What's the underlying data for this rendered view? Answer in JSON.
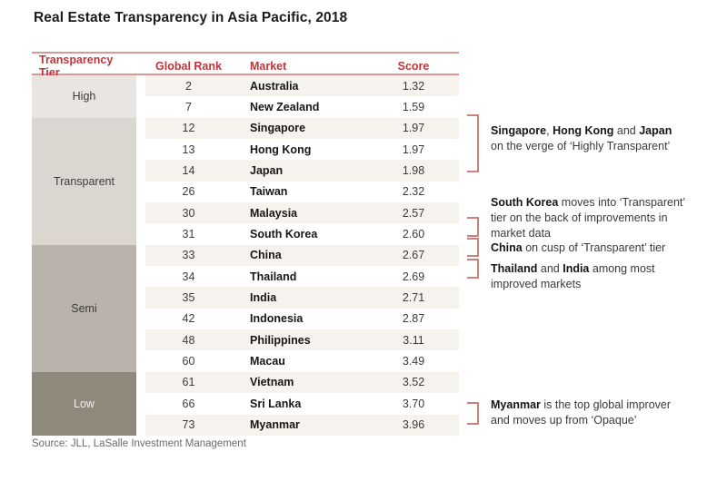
{
  "title": "Real Estate Transparency in Asia Pacific, 2018",
  "source": "Source: JLL, LaSalle Investment Management",
  "colors": {
    "header_text": "#c1343a",
    "rule": "#d59a95",
    "bracket": "#c9837d",
    "row_stripe": "#f6f2ed",
    "tier_high": "#e9e5e0",
    "tier_transparent": "#dbd6cf",
    "tier_semi": "#b9b3ab",
    "tier_low": "#8e897b"
  },
  "chart_data": {
    "type": "table",
    "title": "Real Estate Transparency in Asia Pacific, 2018",
    "columns": [
      "Transparency Tier",
      "Global Rank",
      "Market",
      "Score"
    ],
    "tiers": [
      {
        "label": "High",
        "row_span": 2
      },
      {
        "label": "Transparent",
        "row_span": 6
      },
      {
        "label": "Semi",
        "row_span": 6
      },
      {
        "label": "Low",
        "row_span": 3
      }
    ],
    "rows": [
      {
        "rank": "2",
        "market": "Australia",
        "score": "1.32"
      },
      {
        "rank": "7",
        "market": "New Zealand",
        "score": "1.59"
      },
      {
        "rank": "12",
        "market": "Singapore",
        "score": "1.97"
      },
      {
        "rank": "13",
        "market": "Hong Kong",
        "score": "1.97"
      },
      {
        "rank": "14",
        "market": "Japan",
        "score": "1.98"
      },
      {
        "rank": "26",
        "market": "Taiwan",
        "score": "2.32"
      },
      {
        "rank": "30",
        "market": "Malaysia",
        "score": "2.57"
      },
      {
        "rank": "31",
        "market": "South Korea",
        "score": "2.60"
      },
      {
        "rank": "33",
        "market": "China",
        "score": "2.67"
      },
      {
        "rank": "34",
        "market": "Thailand",
        "score": "2.69"
      },
      {
        "rank": "35",
        "market": "India",
        "score": "2.71"
      },
      {
        "rank": "42",
        "market": "Indonesia",
        "score": "2.87"
      },
      {
        "rank": "48",
        "market": "Philippines",
        "score": "3.11"
      },
      {
        "rank": "60",
        "market": "Macau",
        "score": "3.49"
      },
      {
        "rank": "61",
        "market": "Vietnam",
        "score": "3.52"
      },
      {
        "rank": "66",
        "market": "Sri Lanka",
        "score": "3.70"
      },
      {
        "rank": "73",
        "market": "Myanmar",
        "score": "3.96"
      }
    ]
  },
  "table": {
    "headers": {
      "tier": "Transparency Tier",
      "rank": "Global Rank",
      "market": "Market",
      "score": "Score"
    }
  },
  "annotations": [
    {
      "lines": [
        [
          {
            "t": "Singapore",
            "b": true
          },
          {
            "t": ", ",
            "b": false
          },
          {
            "t": "Hong Kong",
            "b": true
          },
          {
            "t": " and ",
            "b": false
          },
          {
            "t": "Japan",
            "b": true
          }
        ],
        [
          {
            "t": "on the verge of ‘Highly Transparent’",
            "b": false
          }
        ]
      ]
    },
    {
      "lines": [
        [
          {
            "t": "South Korea",
            "b": true
          },
          {
            "t": " moves into ‘Transparent’",
            "b": false
          }
        ],
        [
          {
            "t": "tier on the back of improvements in",
            "b": false
          }
        ],
        [
          {
            "t": "market data",
            "b": false
          }
        ]
      ]
    },
    {
      "lines": [
        [
          {
            "t": "China",
            "b": true
          },
          {
            "t": " on cusp of ‘Transparent’ tier",
            "b": false
          }
        ]
      ]
    },
    {
      "lines": [
        [
          {
            "t": "Thailand",
            "b": true
          },
          {
            "t": " and ",
            "b": false
          },
          {
            "t": "India",
            "b": true
          },
          {
            "t": " among most",
            "b": false
          }
        ],
        [
          {
            "t": "improved markets",
            "b": false
          }
        ]
      ]
    },
    {
      "lines": [
        [
          {
            "t": "Myanmar",
            "b": true
          },
          {
            "t": " is the top global improver",
            "b": false
          }
        ],
        [
          {
            "t": "and moves up from ‘Opaque’",
            "b": false
          }
        ]
      ]
    }
  ]
}
